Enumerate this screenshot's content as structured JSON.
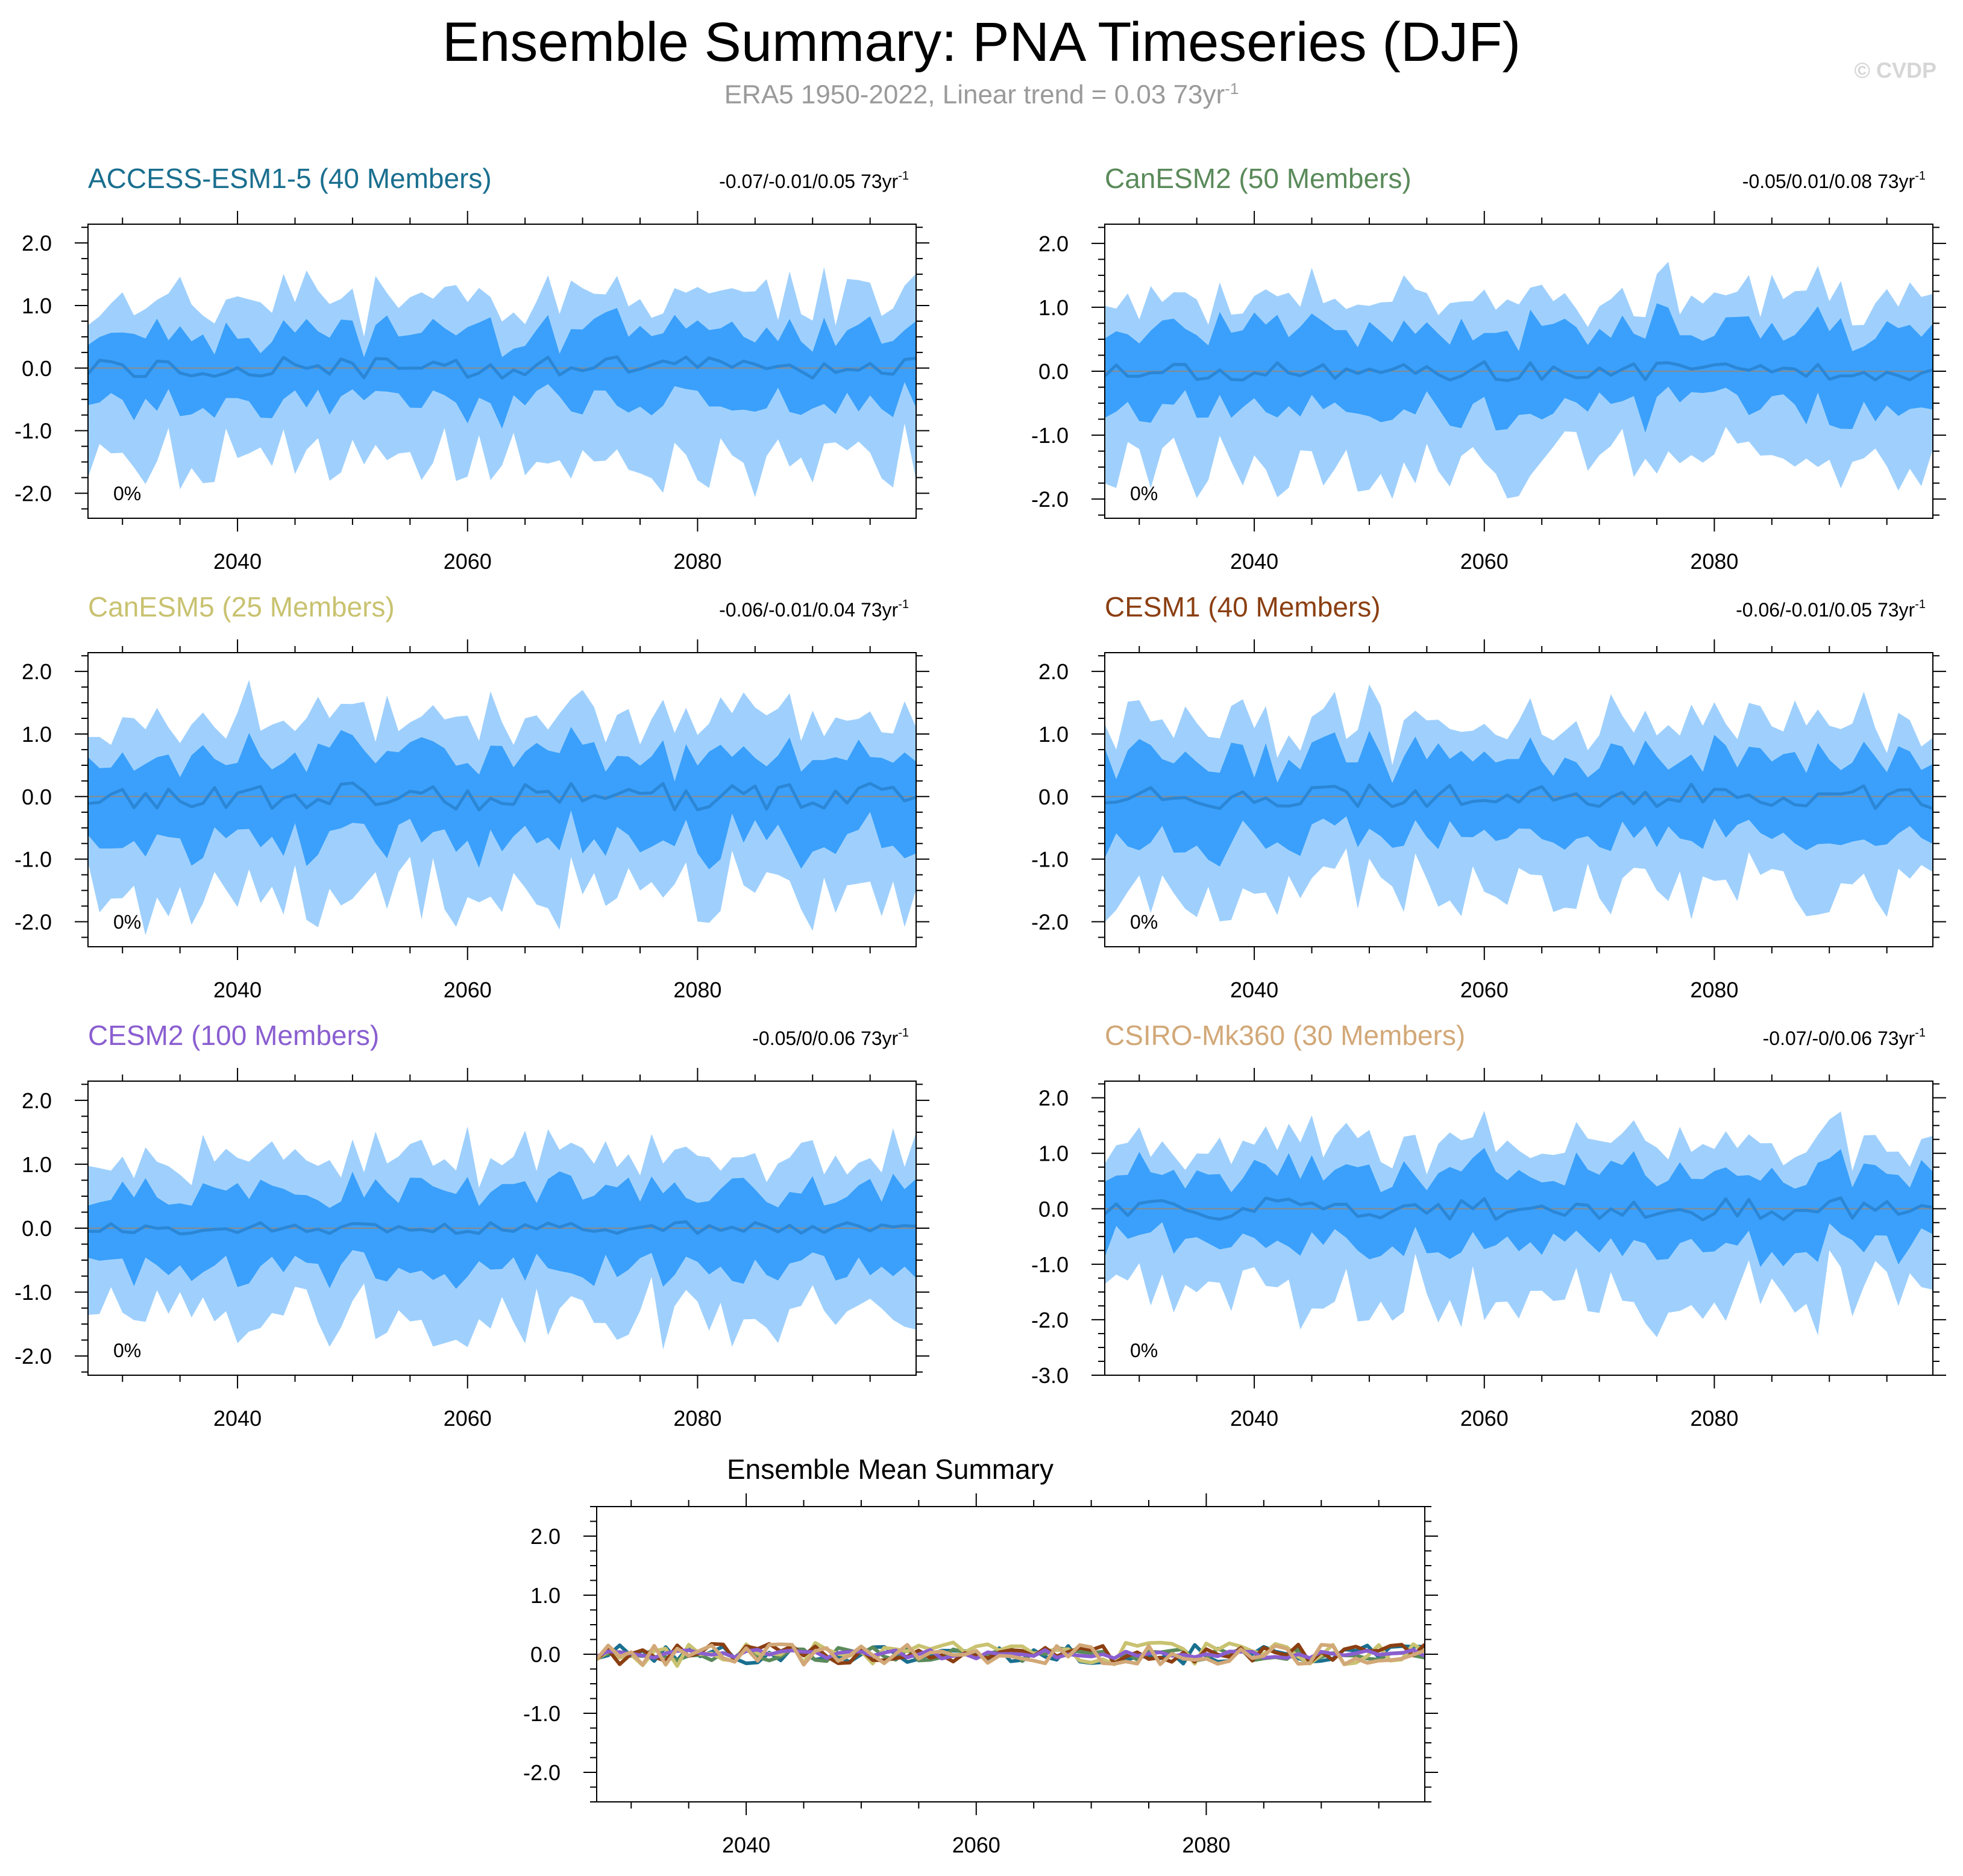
{
  "header": {
    "title": "Ensemble Summary: PNA Timeseries (DJF)",
    "subtitle_text": "ERA5 1950-2022, Linear trend = 0.03 73yr",
    "subtitle_sup": "-1",
    "watermark": "© CVDP"
  },
  "colors": {
    "outer_band": "#9fd0fd",
    "inner_band": "#3aa0fb",
    "ensemble_median": "#2b86d6",
    "zero_line": "#8a8a8a"
  },
  "chart_data": [
    {
      "type": "area",
      "title": "ACCESS-ESM1-5 (40 Members)",
      "title_color": "#1a6f8f",
      "trend": "-0.07/-0.01/0.05 73yr",
      "trend_sup": "-1",
      "percent": "0%",
      "x": [
        2027,
        2099
      ],
      "xticks": [
        2040,
        2060,
        2080
      ],
      "xtick_labels": [
        "2040",
        "2060",
        "2080"
      ],
      "ylim": [
        -2.4,
        2.3
      ],
      "yticks": [
        2.0,
        1.0,
        0.0,
        -1.0,
        -2.0
      ],
      "ytick_labels": [
        "2.0",
        "1.0",
        "0.0",
        "-1.0",
        "-2.0"
      ],
      "seed": 11,
      "bands": {
        "outer_high": 1.15,
        "inner_high": 0.6,
        "inner_low": -0.6,
        "outer_low": -1.5,
        "median_amp": 0.18
      }
    },
    {
      "type": "area",
      "title": "CanESM2 (50 Members)",
      "title_color": "#5a8a5a",
      "trend": "-0.05/0.01/0.08 73yr",
      "trend_sup": "-1",
      "percent": "0%",
      "x": [
        2027,
        2099
      ],
      "xticks": [
        2040,
        2060,
        2080
      ],
      "xtick_labels": [
        "2040",
        "2060",
        "2080"
      ],
      "ylim": [
        -2.3,
        2.3
      ],
      "yticks": [
        2.0,
        1.0,
        0.0,
        -1.0,
        -2.0
      ],
      "ytick_labels": [
        "2.0",
        "1.0",
        "0.0",
        "-1.0",
        "-2.0"
      ],
      "seed": 23,
      "bands": {
        "outer_high": 1.2,
        "inner_high": 0.7,
        "inner_low": -0.65,
        "outer_low": -1.45,
        "median_amp": 0.15
      }
    },
    {
      "type": "area",
      "title": "CanESM5 (25 Members)",
      "title_color": "#c9c270",
      "trend": "-0.06/-0.01/0.04 73yr",
      "trend_sup": "-1",
      "percent": "0%",
      "x": [
        2027,
        2099
      ],
      "xticks": [
        2040,
        2060,
        2080
      ],
      "xtick_labels": [
        "2040",
        "2060",
        "2080"
      ],
      "ylim": [
        -2.4,
        2.3
      ],
      "yticks": [
        2.0,
        1.0,
        0.0,
        -1.0,
        -2.0
      ],
      "ytick_labels": [
        "2.0",
        "1.0",
        "0.0",
        "-1.0",
        "-2.0"
      ],
      "seed": 37,
      "bands": {
        "outer_high": 1.3,
        "inner_high": 0.7,
        "inner_low": -0.75,
        "outer_low": -1.55,
        "median_amp": 0.22
      }
    },
    {
      "type": "area",
      "title": "CESM1 (40 Members)",
      "title_color": "#8b3f12",
      "trend": "-0.06/-0.01/0.05 73yr",
      "trend_sup": "-1",
      "percent": "0%",
      "x": [
        2027,
        2099
      ],
      "xticks": [
        2040,
        2060,
        2080
      ],
      "xtick_labels": [
        "2040",
        "2060",
        "2080"
      ],
      "ylim": [
        -2.4,
        2.3
      ],
      "yticks": [
        2.0,
        1.0,
        0.0,
        -1.0,
        -2.0
      ],
      "ytick_labels": [
        "2.0",
        "1.0",
        "0.0",
        "-1.0",
        "-2.0"
      ],
      "seed": 41,
      "bands": {
        "outer_high": 1.2,
        "inner_high": 0.65,
        "inner_low": -0.7,
        "outer_low": -1.5,
        "median_amp": 0.2
      }
    },
    {
      "type": "area",
      "title": "CESM2 (100 Members)",
      "title_color": "#8a5ed0",
      "trend": "-0.05/0/0.06 73yr",
      "trend_sup": "-1",
      "percent": "0%",
      "x": [
        2027,
        2099
      ],
      "xticks": [
        2040,
        2060,
        2080
      ],
      "xtick_labels": [
        "2040",
        "2060",
        "2080"
      ],
      "ylim": [
        -2.3,
        2.3
      ],
      "yticks": [
        2.0,
        1.0,
        0.0,
        -1.0,
        -2.0
      ],
      "ytick_labels": [
        "2.0",
        "1.0",
        "0.0",
        "-1.0",
        "-2.0"
      ],
      "seed": 53,
      "bands": {
        "outer_high": 1.2,
        "inner_high": 0.65,
        "inner_low": -0.65,
        "outer_low": -1.35,
        "median_amp": 0.1
      }
    },
    {
      "type": "area",
      "title": "CSIRO-Mk360 (30 Members)",
      "title_color": "#d2a878",
      "trend": "-0.07/-0/0.06 73yr",
      "trend_sup": "-1",
      "percent": "0%",
      "x": [
        2027,
        2099
      ],
      "xticks": [
        2040,
        2060,
        2080
      ],
      "xtick_labels": [
        "2040",
        "2060",
        "2080"
      ],
      "ylim": [
        -3.0,
        2.3
      ],
      "yticks": [
        2.0,
        1.0,
        0.0,
        -1.0,
        -2.0,
        -3.0
      ],
      "ytick_labels": [
        "2.0",
        "1.0",
        "0.0",
        "-1.0",
        "-2.0",
        "-3.0"
      ],
      "seed": 67,
      "bands": {
        "outer_high": 1.2,
        "inner_high": 0.7,
        "inner_low": -0.7,
        "outer_low": -1.6,
        "median_amp": 0.2
      }
    },
    {
      "type": "line",
      "title": "Ensemble Mean Summary",
      "title_color": "#000000",
      "x": [
        2027,
        2099
      ],
      "xticks": [
        2040,
        2060,
        2080
      ],
      "xtick_labels": [
        "2040",
        "2060",
        "2080"
      ],
      "ylim": [
        -2.5,
        2.5
      ],
      "yticks": [
        2.0,
        1.0,
        0.0,
        -1.0,
        -2.0
      ],
      "ytick_labels": [
        "2.0",
        "1.0",
        "0.0",
        "-1.0",
        "-2.0"
      ],
      "series": [
        {
          "name": "ACCESS-ESM1-5",
          "color": "#1a6f8f",
          "seed": 101,
          "amp": 0.16
        },
        {
          "name": "CanESM2",
          "color": "#5a8a5a",
          "seed": 102,
          "amp": 0.12
        },
        {
          "name": "CanESM5",
          "color": "#c9c270",
          "seed": 103,
          "amp": 0.2
        },
        {
          "name": "CESM1",
          "color": "#8b3f12",
          "seed": 104,
          "amp": 0.18
        },
        {
          "name": "CESM2",
          "color": "#8a5ed0",
          "seed": 105,
          "amp": 0.08
        },
        {
          "name": "CSIRO-Mk360",
          "color": "#d2a878",
          "seed": 106,
          "amp": 0.19
        }
      ]
    }
  ]
}
